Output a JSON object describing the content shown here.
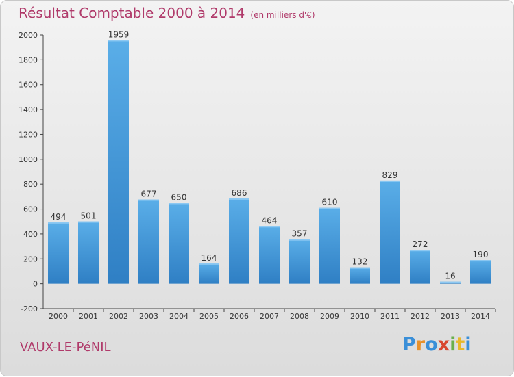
{
  "chart_data": {
    "type": "bar",
    "title": "Résultat Comptable 2000 à 2014",
    "subtitle": "(en milliers d'€)",
    "categories": [
      "2000",
      "2001",
      "2002",
      "2003",
      "2004",
      "2005",
      "2006",
      "2007",
      "2008",
      "2009",
      "2010",
      "2011",
      "2012",
      "2013",
      "2014"
    ],
    "values": [
      494,
      501,
      1959,
      677,
      650,
      164,
      686,
      464,
      357,
      610,
      132,
      829,
      272,
      16,
      190
    ],
    "yticks": [
      -200,
      0,
      200,
      400,
      600,
      800,
      1000,
      1200,
      1400,
      1600,
      1800,
      2000
    ],
    "ylim": [
      -200,
      2000
    ],
    "xlabel": "",
    "ylabel": "",
    "grid": false,
    "bar_color": "#4a9ee0"
  },
  "footer": {
    "place_name": "VAUX-LE-PéNIL",
    "logo_letters": [
      "P",
      "r",
      "o",
      "x",
      "i",
      "t",
      "i"
    ],
    "logo_colors": [
      "#3a8fd8",
      "#e8912a",
      "#3a8fd8",
      "#d8452e",
      "#6ab04c",
      "#e8b82a",
      "#3a8fd8"
    ]
  }
}
